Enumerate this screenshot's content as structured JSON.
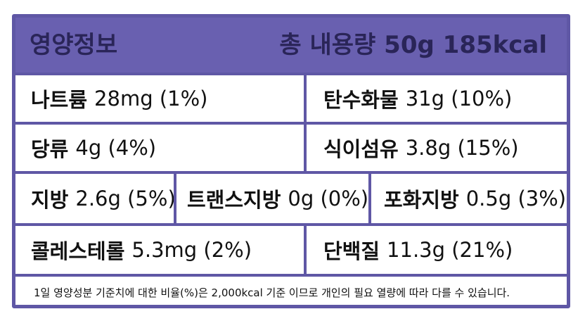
{
  "header": {
    "title": "영양정보",
    "total": "총 내용량 50g 185kcal"
  },
  "rows": [
    [
      {
        "name": "나트륨",
        "value": "28mg (1%)"
      },
      {
        "name": "탄수화물",
        "value": "31g (10%)"
      }
    ],
    [
      {
        "name": "당류",
        "value": "4g (4%)"
      },
      {
        "name": "식이섬유",
        "value": "3.8g (15%)"
      }
    ],
    [
      {
        "name": "지방",
        "value": "2.6g (5%)"
      },
      {
        "name": "트랜스지방",
        "value": "0g (0%)"
      },
      {
        "name": "포화지방",
        "value": "0.5g (3%)"
      }
    ],
    [
      {
        "name": "콜레스테롤",
        "value": "5.3mg (2%)"
      },
      {
        "name": "단백질",
        "value": "11.3g (21%)"
      }
    ]
  ],
  "footnote": "1일 영양성분 기준치에 대한 비율(%)은 2,000kcal 기준 이므로 개인의 필요 열량에 따라 다를 수 있습니다.",
  "colors": {
    "border": "#5f57a5",
    "header_bg": "#6960b0",
    "header_text": "#2a2558"
  }
}
